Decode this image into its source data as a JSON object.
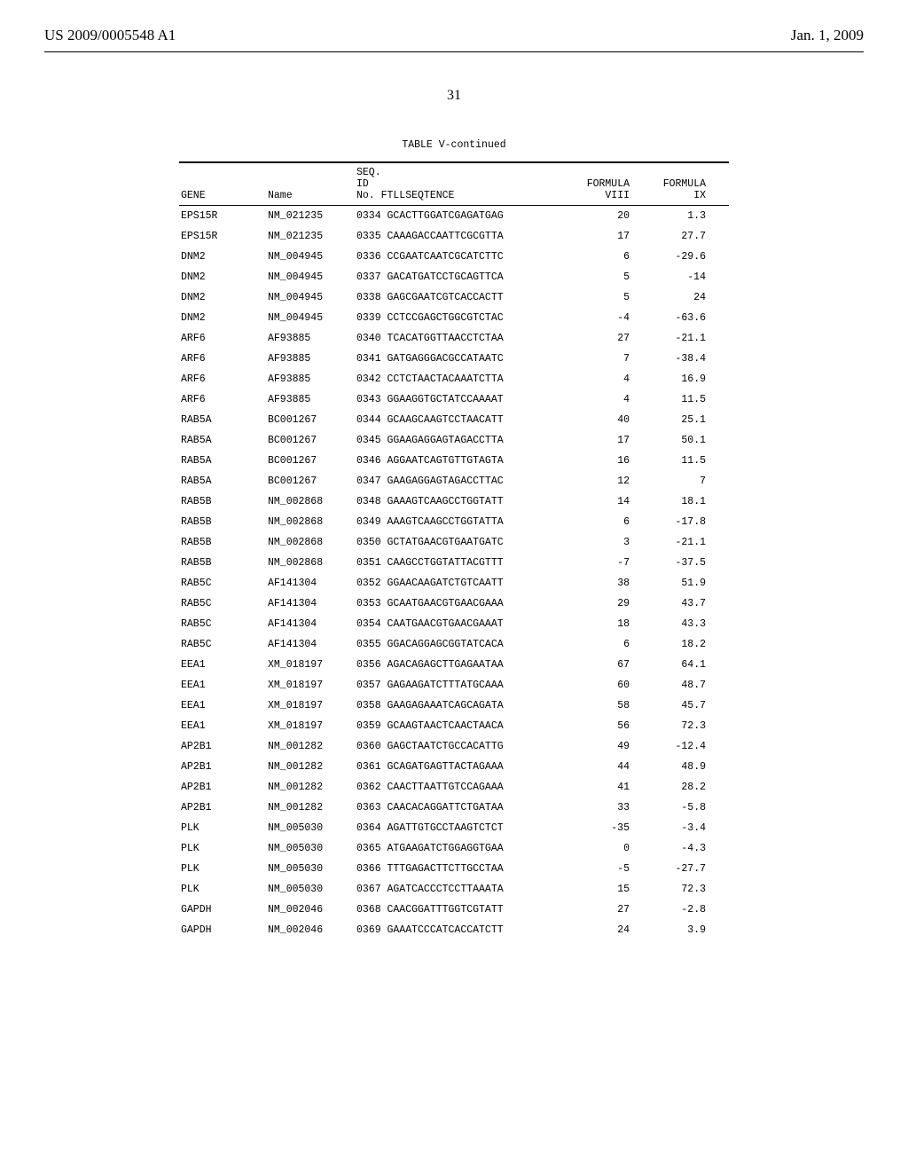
{
  "header": {
    "left": "US 2009/0005548 A1",
    "right": "Jan. 1, 2009"
  },
  "page_number": "31",
  "table": {
    "title": "TABLE V-continued",
    "columns": {
      "gene": "GENE",
      "name": "Name",
      "seq_line1": "SEQ.",
      "seq_line2": "ID",
      "seq_line3": "No. FTLLSEQTENCE",
      "f8_line1": "FORMULA",
      "f8_line2": "VIII",
      "f9_line1": "FORMULA",
      "f9_line2": "IX"
    },
    "rows": [
      {
        "gene": "EPS15R",
        "name": "NM_021235",
        "seqno": "0334",
        "seq": "GCACTTGGATCGAGATGAG",
        "f8": "20",
        "f9": "1.3"
      },
      {
        "gene": "EPS15R",
        "name": "NM_021235",
        "seqno": "0335",
        "seq": "CAAAGACCAATTCGCGTTA",
        "f8": "17",
        "f9": "27.7"
      },
      {
        "gene": "DNM2",
        "name": "NM_004945",
        "seqno": "0336",
        "seq": "CCGAATCAATCGCATCTTC",
        "f8": "6",
        "f9": "-29.6"
      },
      {
        "gene": "DNM2",
        "name": "NM_004945",
        "seqno": "0337",
        "seq": "GACATGATCCTGCAGTTCA",
        "f8": "5",
        "f9": "-14"
      },
      {
        "gene": "DNM2",
        "name": "NM_004945",
        "seqno": "0338",
        "seq": "GAGCGAATCGTCACCACTT",
        "f8": "5",
        "f9": "24"
      },
      {
        "gene": "DNM2",
        "name": "NM_004945",
        "seqno": "0339",
        "seq": "CCTCCGAGCTGGCGTCTAC",
        "f8": "-4",
        "f9": "-63.6"
      },
      {
        "gene": "ARF6",
        "name": "AF93885",
        "seqno": "0340",
        "seq": "TCACATGGTTAACCTCTAA",
        "f8": "27",
        "f9": "-21.1"
      },
      {
        "gene": "ARF6",
        "name": "AF93885",
        "seqno": "0341",
        "seq": "GATGAGGGACGCCATAATC",
        "f8": "7",
        "f9": "-38.4"
      },
      {
        "gene": "ARF6",
        "name": "AF93885",
        "seqno": "0342",
        "seq": "CCTCTAACTACAAATCTTA",
        "f8": "4",
        "f9": "16.9"
      },
      {
        "gene": "ARF6",
        "name": "AF93885",
        "seqno": "0343",
        "seq": "GGAAGGTGCTATCCAAAAT",
        "f8": "4",
        "f9": "11.5"
      },
      {
        "gene": "RAB5A",
        "name": "BC001267",
        "seqno": "0344",
        "seq": "GCAAGCAAGTCCTAACATT",
        "f8": "40",
        "f9": "25.1"
      },
      {
        "gene": "RAB5A",
        "name": "BC001267",
        "seqno": "0345",
        "seq": "GGAAGAGGAGTAGACCTTA",
        "f8": "17",
        "f9": "50.1"
      },
      {
        "gene": "RAB5A",
        "name": "BC001267",
        "seqno": "0346",
        "seq": "AGGAATCAGTGTTGTAGTA",
        "f8": "16",
        "f9": "11.5"
      },
      {
        "gene": "RAB5A",
        "name": "BC001267",
        "seqno": "0347",
        "seq": "GAAGAGGAGTAGACCTTAC",
        "f8": "12",
        "f9": "7"
      },
      {
        "gene": "RAB5B",
        "name": "NM_002868",
        "seqno": "0348",
        "seq": "GAAAGTCAAGCCTGGTATT",
        "f8": "14",
        "f9": "18.1"
      },
      {
        "gene": "RAB5B",
        "name": "NM_002868",
        "seqno": "0349",
        "seq": "AAAGTCAAGCCTGGTATTA",
        "f8": "6",
        "f9": "-17.8"
      },
      {
        "gene": "RAB5B",
        "name": "NM_002868",
        "seqno": "0350",
        "seq": "GCTATGAACGTGAATGATC",
        "f8": "3",
        "f9": "-21.1"
      },
      {
        "gene": "RAB5B",
        "name": "NM_002868",
        "seqno": "0351",
        "seq": "CAAGCCTGGTATTACGTTT",
        "f8": "-7",
        "f9": "-37.5"
      },
      {
        "gene": "RAB5C",
        "name": "AF141304",
        "seqno": "0352",
        "seq": "GGAACAAGATCTGTCAATT",
        "f8": "38",
        "f9": "51.9"
      },
      {
        "gene": "RAB5C",
        "name": "AF141304",
        "seqno": "0353",
        "seq": "GCAATGAACGTGAACGAAA",
        "f8": "29",
        "f9": "43.7"
      },
      {
        "gene": "RAB5C",
        "name": "AF141304",
        "seqno": "0354",
        "seq": "CAATGAACGTGAACGAAAT",
        "f8": "18",
        "f9": "43.3"
      },
      {
        "gene": "RAB5C",
        "name": "AF141304",
        "seqno": "0355",
        "seq": "GGACAGGAGCGGTATCACA",
        "f8": "6",
        "f9": "18.2"
      },
      {
        "gene": "EEA1",
        "name": "XM_018197",
        "seqno": "0356",
        "seq": "AGACAGAGCTTGAGAATAA",
        "f8": "67",
        "f9": "64.1"
      },
      {
        "gene": "EEA1",
        "name": "XM_018197",
        "seqno": "0357",
        "seq": "GAGAAGATCTTTATGCAAA",
        "f8": "60",
        "f9": "48.7"
      },
      {
        "gene": "EEA1",
        "name": "XM_018197",
        "seqno": "0358",
        "seq": "GAAGAGAAATCAGCAGATA",
        "f8": "58",
        "f9": "45.7"
      },
      {
        "gene": "EEA1",
        "name": "XM_018197",
        "seqno": "0359",
        "seq": "GCAAGTAACTCAACTAACA",
        "f8": "56",
        "f9": "72.3"
      },
      {
        "gene": "AP2B1",
        "name": "NM_001282",
        "seqno": "0360",
        "seq": "GAGCTAATCTGCCACATTG",
        "f8": "49",
        "f9": "-12.4"
      },
      {
        "gene": "AP2B1",
        "name": "NM_001282",
        "seqno": "0361",
        "seq": "GCAGATGAGTTACTAGAAA",
        "f8": "44",
        "f9": "48.9"
      },
      {
        "gene": "AP2B1",
        "name": "NM_001282",
        "seqno": "0362",
        "seq": "CAACTTAATTGTCCAGAAA",
        "f8": "41",
        "f9": "28.2"
      },
      {
        "gene": "AP2B1",
        "name": "NM_001282",
        "seqno": "0363",
        "seq": "CAACACAGGATTCTGATAA",
        "f8": "33",
        "f9": "-5.8"
      },
      {
        "gene": "PLK",
        "name": "NM_005030",
        "seqno": "0364",
        "seq": "AGATTGTGCCTAAGTCTCT",
        "f8": "-35",
        "f9": "-3.4"
      },
      {
        "gene": "PLK",
        "name": "NM_005030",
        "seqno": "0365",
        "seq": "ATGAAGATCTGGAGGTGAA",
        "f8": "0",
        "f9": "-4.3"
      },
      {
        "gene": "PLK",
        "name": "NM_005030",
        "seqno": "0366",
        "seq": "TTTGAGACTTCTTGCCTAA",
        "f8": "-5",
        "f9": "-27.7"
      },
      {
        "gene": "PLK",
        "name": "NM_005030",
        "seqno": "0367",
        "seq": "AGATCACCCTCCTTAAATA",
        "f8": "15",
        "f9": "72.3"
      },
      {
        "gene": "GAPDH",
        "name": "NM_002046",
        "seqno": "0368",
        "seq": "CAACGGATTTGGTCGTATT",
        "f8": "27",
        "f9": "-2.8"
      },
      {
        "gene": "GAPDH",
        "name": "NM_002046",
        "seqno": "0369",
        "seq": "GAAATCCCATCACCATCTT",
        "f8": "24",
        "f9": "3.9"
      }
    ]
  }
}
